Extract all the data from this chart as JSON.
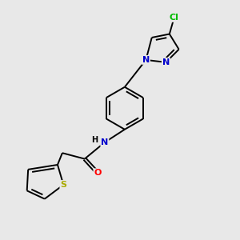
{
  "background_color": "#e8e8e8",
  "bond_color": "#000000",
  "atom_colors": {
    "N": "#0000cc",
    "O": "#ff0000",
    "S": "#aaaa00",
    "Cl": "#00bb00",
    "C": "#000000",
    "H": "#000000"
  },
  "title": "",
  "figsize": [
    3.0,
    3.0
  ],
  "dpi": 100
}
